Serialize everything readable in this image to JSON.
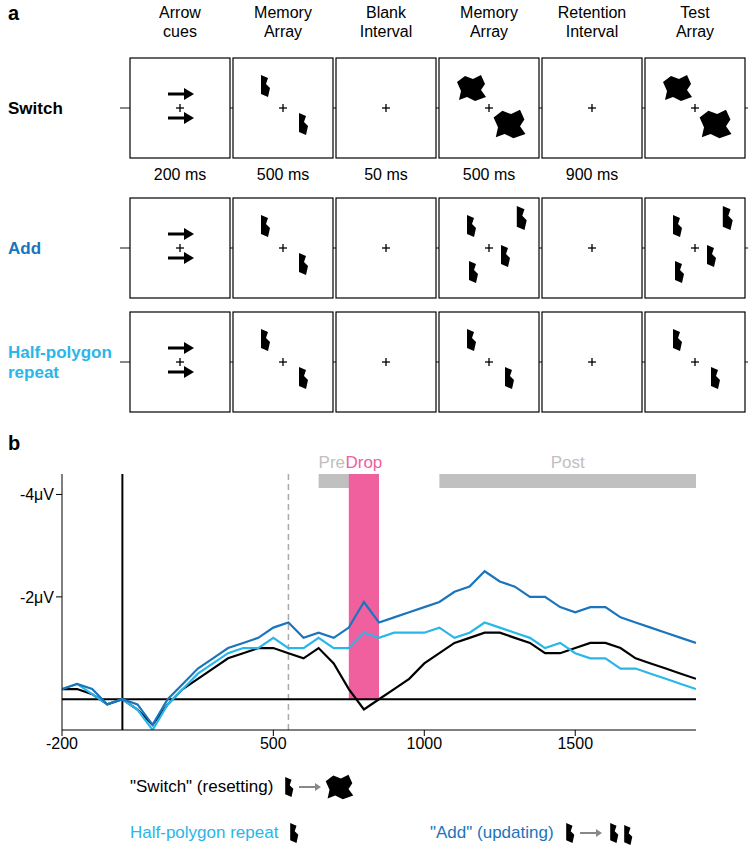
{
  "diagram": {
    "panel_label": "a",
    "columns": [
      "Arrow cues",
      "Memory Array",
      "Blank Interval",
      "Memory Array",
      "Retention Interval",
      "Test Array"
    ],
    "durations": [
      "200 ms",
      "500 ms",
      "50 ms",
      "500 ms",
      "900 ms"
    ],
    "rows": [
      {
        "label": "Switch",
        "color": "#000000"
      },
      {
        "label": "Add",
        "color": "#1a75bc"
      },
      {
        "label": "Half-polygon repeat",
        "color": "#29b6e8"
      }
    ]
  },
  "chart_data": {
    "panel_label": "b",
    "type": "line",
    "x": [
      -200,
      -150,
      -100,
      -50,
      0,
      50,
      100,
      150,
      200,
      250,
      300,
      350,
      400,
      450,
      500,
      550,
      600,
      650,
      700,
      750,
      800,
      850,
      900,
      950,
      1000,
      1050,
      1100,
      1150,
      1200,
      1250,
      1300,
      1350,
      1400,
      1450,
      1500,
      1550,
      1600,
      1650,
      1700,
      1750,
      1800,
      1850,
      1900
    ],
    "series": [
      {
        "name": "\"Switch\" (resetting)",
        "color": "#000000",
        "values": [
          -0.2,
          -0.2,
          -0.1,
          0.1,
          0.0,
          0.2,
          0.5,
          0.1,
          -0.2,
          -0.4,
          -0.6,
          -0.8,
          -0.9,
          -1.0,
          -1.0,
          -0.9,
          -0.8,
          -1.0,
          -0.7,
          -0.2,
          0.2,
          0.0,
          -0.2,
          -0.4,
          -0.7,
          -0.9,
          -1.1,
          -1.2,
          -1.3,
          -1.3,
          -1.2,
          -1.1,
          -0.9,
          -0.9,
          -1.0,
          -1.1,
          -1.1,
          -1.0,
          -0.8,
          -0.7,
          -0.6,
          -0.5,
          -0.4
        ]
      },
      {
        "name": "Half-polygon repeat",
        "color": "#29b6e8",
        "values": [
          -0.2,
          -0.3,
          -0.1,
          0.1,
          0.0,
          0.2,
          0.6,
          0.1,
          -0.2,
          -0.5,
          -0.7,
          -0.9,
          -1.0,
          -1.0,
          -1.2,
          -1.0,
          -1.0,
          -1.2,
          -1.0,
          -1.0,
          -1.3,
          -1.2,
          -1.3,
          -1.3,
          -1.3,
          -1.4,
          -1.2,
          -1.3,
          -1.5,
          -1.4,
          -1.3,
          -1.2,
          -1.0,
          -1.1,
          -0.9,
          -0.8,
          -0.8,
          -0.6,
          -0.6,
          -0.5,
          -0.4,
          -0.3,
          -0.2
        ]
      },
      {
        "name": "\"Add\" (updating)",
        "color": "#1a75bc",
        "values": [
          -0.2,
          -0.3,
          -0.2,
          0.1,
          0.0,
          0.1,
          0.5,
          0.0,
          -0.3,
          -0.6,
          -0.8,
          -1.0,
          -1.1,
          -1.2,
          -1.4,
          -1.5,
          -1.2,
          -1.3,
          -1.2,
          -1.4,
          -1.9,
          -1.5,
          -1.6,
          -1.7,
          -1.8,
          -1.9,
          -2.1,
          -2.2,
          -2.5,
          -2.3,
          -2.2,
          -2.0,
          -2.0,
          -1.8,
          -1.7,
          -1.8,
          -1.8,
          -1.6,
          -1.5,
          -1.4,
          -1.3,
          -1.2,
          -1.1
        ]
      }
    ],
    "xlim": [
      -200,
      1900
    ],
    "xticks": [
      -200,
      500,
      1000,
      1500
    ],
    "ylim": [
      -4.4,
      0.6
    ],
    "yticks": [
      {
        "value": -4,
        "label": "-4μV"
      },
      {
        "value": -2,
        "label": "-2μV"
      }
    ],
    "vertical_lines": [
      {
        "x": 0,
        "line_style": "solid"
      },
      {
        "x": 550,
        "line_style": "dashed"
      }
    ],
    "horizontal_lines": [
      {
        "y": 0,
        "line_style": "solid"
      }
    ],
    "windows": [
      {
        "label": "Pre",
        "start": 650,
        "end": 850,
        "color": "#c0c0c0"
      },
      {
        "label": "Drop",
        "start": 750,
        "end": 850,
        "color": "#f0609e"
      },
      {
        "label": "Post",
        "start": 1050,
        "end": 1900,
        "color": "#c0c0c0"
      }
    ],
    "grid": false
  }
}
